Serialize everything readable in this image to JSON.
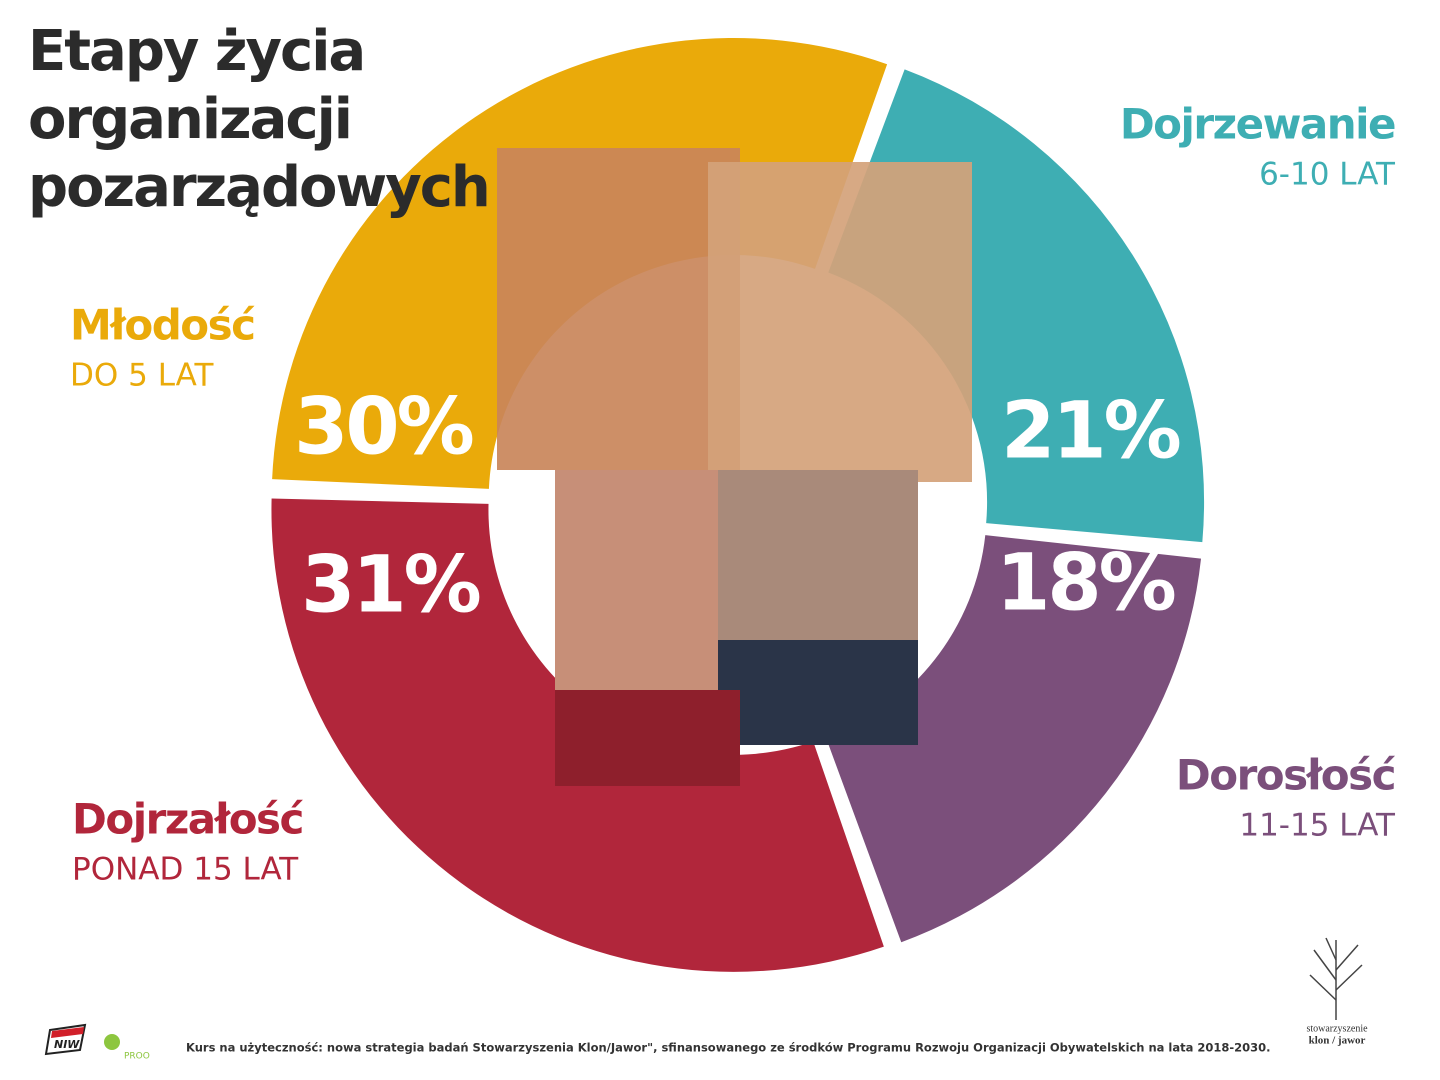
{
  "chart_data": {
    "type": "donut",
    "title": "Etapy życia organizacji pozarządowych",
    "categories": [
      "Młodość",
      "Dojrzewanie",
      "Dorosłość",
      "Dojrzałość"
    ],
    "category_details": [
      "DO 5 LAT",
      "6-10 LAT",
      "11-15 LAT",
      "PONAD 15 LAT"
    ],
    "values": [
      30,
      21,
      18,
      31
    ],
    "value_labels": [
      "30%",
      "21%",
      "18%",
      "31%"
    ],
    "colors": [
      "#eaaa0a",
      "#3eaeb3",
      "#7b4f7b",
      "#b1263b"
    ]
  },
  "footer": {
    "note": "Kurs na użyteczność: nowa strategia badań Stowarzyszenia Klon/Jawor\", sfinansowanego ze środków Programu Rozwoju Organizacji Obywatelskich na lata 2018-2030.",
    "logos": [
      "NIW",
      "PROO",
      "stowarzyszenie",
      "klon / jawor"
    ]
  }
}
